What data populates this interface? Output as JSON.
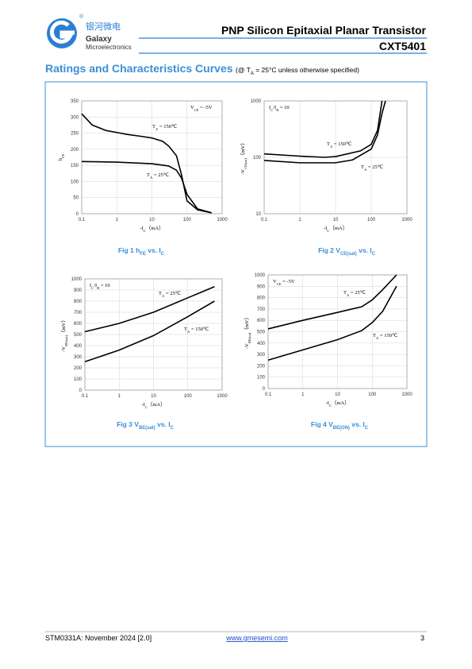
{
  "header": {
    "logo_cn": "银河微电",
    "logo_en1": "Galaxy",
    "logo_en2": "Microelectronics",
    "title": "PNP Silicon Epitaxial Planar Transistor",
    "part": "CXT5401"
  },
  "section": {
    "heading": "Ratings and Characteristics Curves",
    "condition": [
      "(@ T",
      "A",
      " = 25°C unless otherwise specified)"
    ]
  },
  "chart_data": [
    {
      "type": "line",
      "caption": [
        "Fig 1   h",
        "FE",
        " vs. I",
        "C"
      ],
      "xlabel": [
        "-I",
        "C",
        "（mA）"
      ],
      "ylabel": [
        "h",
        "FE"
      ],
      "annotation": [
        "V",
        "CE",
        " = -5V"
      ],
      "annotation_corner": "upper right",
      "xlog": true,
      "ylog": false,
      "grid": true,
      "xlim": [
        0.1,
        1000
      ],
      "xticks": [
        0.1,
        1,
        10,
        100,
        1000
      ],
      "ylim": [
        0,
        350
      ],
      "yticks": [
        0,
        50,
        100,
        150,
        200,
        250,
        300,
        350
      ],
      "series": [
        {
          "name": [
            "T",
            "A",
            " = 150℃"
          ],
          "color": "#000000",
          "x": [
            0.1,
            0.2,
            0.5,
            1,
            2,
            5,
            10,
            20,
            30,
            50,
            70,
            100,
            200,
            500
          ],
          "values": [
            310,
            275,
            258,
            252,
            246,
            240,
            235,
            225,
            210,
            180,
            120,
            40,
            12,
            3
          ]
        },
        {
          "name": [
            "T",
            "A",
            " = 25℃"
          ],
          "color": "#000000",
          "x": [
            0.1,
            1,
            10,
            30,
            50,
            70,
            100,
            200,
            500
          ],
          "values": [
            162,
            160,
            155,
            148,
            135,
            110,
            60,
            15,
            3
          ]
        }
      ]
    },
    {
      "type": "line",
      "caption": [
        "Fig 2   V",
        "CE(sat)",
        " vs. I",
        "C"
      ],
      "xlabel": [
        "-I",
        "C",
        "（mA）"
      ],
      "ylabel": [
        "-V",
        "CE(sat)",
        "（mV）"
      ],
      "annotation": [
        "I",
        "C",
        "/I",
        "B",
        " = 10"
      ],
      "annotation_corner": "upper left",
      "xlog": true,
      "ylog": true,
      "grid": true,
      "xlim": [
        0.1,
        1000
      ],
      "xticks": [
        0.1,
        1,
        10,
        100,
        1000
      ],
      "ylim": [
        10,
        1000
      ],
      "yticks": [
        10,
        100,
        1000
      ],
      "series": [
        {
          "name": [
            "T",
            "A",
            " = 150℃"
          ],
          "color": "#000000",
          "x": [
            0.1,
            1,
            5,
            10,
            50,
            100,
            150,
            200
          ],
          "values": [
            115,
            105,
            100,
            103,
            130,
            170,
            300,
            1000
          ]
        },
        {
          "name": [
            "T",
            "A",
            " = 25℃"
          ],
          "color": "#000000",
          "x": [
            0.1,
            1,
            10,
            30,
            100,
            150,
            200,
            250
          ],
          "values": [
            88,
            80,
            80,
            90,
            140,
            250,
            600,
            1000
          ]
        }
      ]
    },
    {
      "type": "line",
      "caption": [
        "Fig 3   V",
        "BE(sat)",
        " vs. I",
        "C"
      ],
      "xlabel": [
        "-I",
        "C",
        "（mA）"
      ],
      "ylabel": [
        "-V",
        "BE(sat)",
        "（mV）"
      ],
      "annotation": [
        "I",
        "C",
        "/I",
        "B",
        " = 10"
      ],
      "annotation_corner": "upper left",
      "xlog": true,
      "ylog": false,
      "grid": true,
      "xlim": [
        0.1,
        1000
      ],
      "xticks": [
        0.1,
        1,
        10,
        100,
        1000
      ],
      "ylim": [
        0,
        1000
      ],
      "yticks": [
        0,
        100,
        200,
        300,
        400,
        500,
        600,
        700,
        800,
        900,
        1000
      ],
      "series": [
        {
          "name": [
            "T",
            "A",
            " = 25℃"
          ],
          "color": "#000000",
          "x": [
            0.1,
            1,
            10,
            100,
            600
          ],
          "values": [
            525,
            600,
            700,
            830,
            930
          ]
        },
        {
          "name": [
            "T",
            "A",
            " = 150℃"
          ],
          "color": "#000000",
          "x": [
            0.1,
            1,
            10,
            100,
            600
          ],
          "values": [
            255,
            360,
            490,
            660,
            800
          ]
        }
      ]
    },
    {
      "type": "line",
      "caption": [
        "Fig 4   V",
        "BE(ON)",
        " vs. I",
        "C"
      ],
      "xlabel": [
        "-I",
        "C",
        "（mA）"
      ],
      "ylabel": [
        "-V",
        "BE(on)",
        "（mV）"
      ],
      "annotation": [
        "V",
        "CE",
        " = -5V"
      ],
      "annotation_corner": "upper left",
      "xlog": true,
      "ylog": false,
      "grid": true,
      "xlim": [
        0.1,
        1000
      ],
      "xticks": [
        0.1,
        1,
        10,
        100,
        1000
      ],
      "ylim": [
        0,
        1000
      ],
      "yticks": [
        0,
        100,
        200,
        300,
        400,
        500,
        600,
        700,
        800,
        900,
        1000
      ],
      "series": [
        {
          "name": [
            "T",
            "A",
            " = 25℃"
          ],
          "color": "#000000",
          "x": [
            0.1,
            1,
            10,
            50,
            100,
            200,
            500
          ],
          "values": [
            525,
            600,
            670,
            720,
            780,
            870,
            1000
          ]
        },
        {
          "name": [
            "T",
            "A",
            " = 150℃"
          ],
          "color": "#000000",
          "x": [
            0.1,
            1,
            10,
            50,
            100,
            200,
            500
          ],
          "values": [
            250,
            340,
            430,
            510,
            580,
            680,
            900
          ]
        }
      ]
    }
  ],
  "footer": {
    "doc": "STM0331A: November 2024 [2.0]",
    "url": "www.gmesemi.com",
    "page": "3"
  }
}
